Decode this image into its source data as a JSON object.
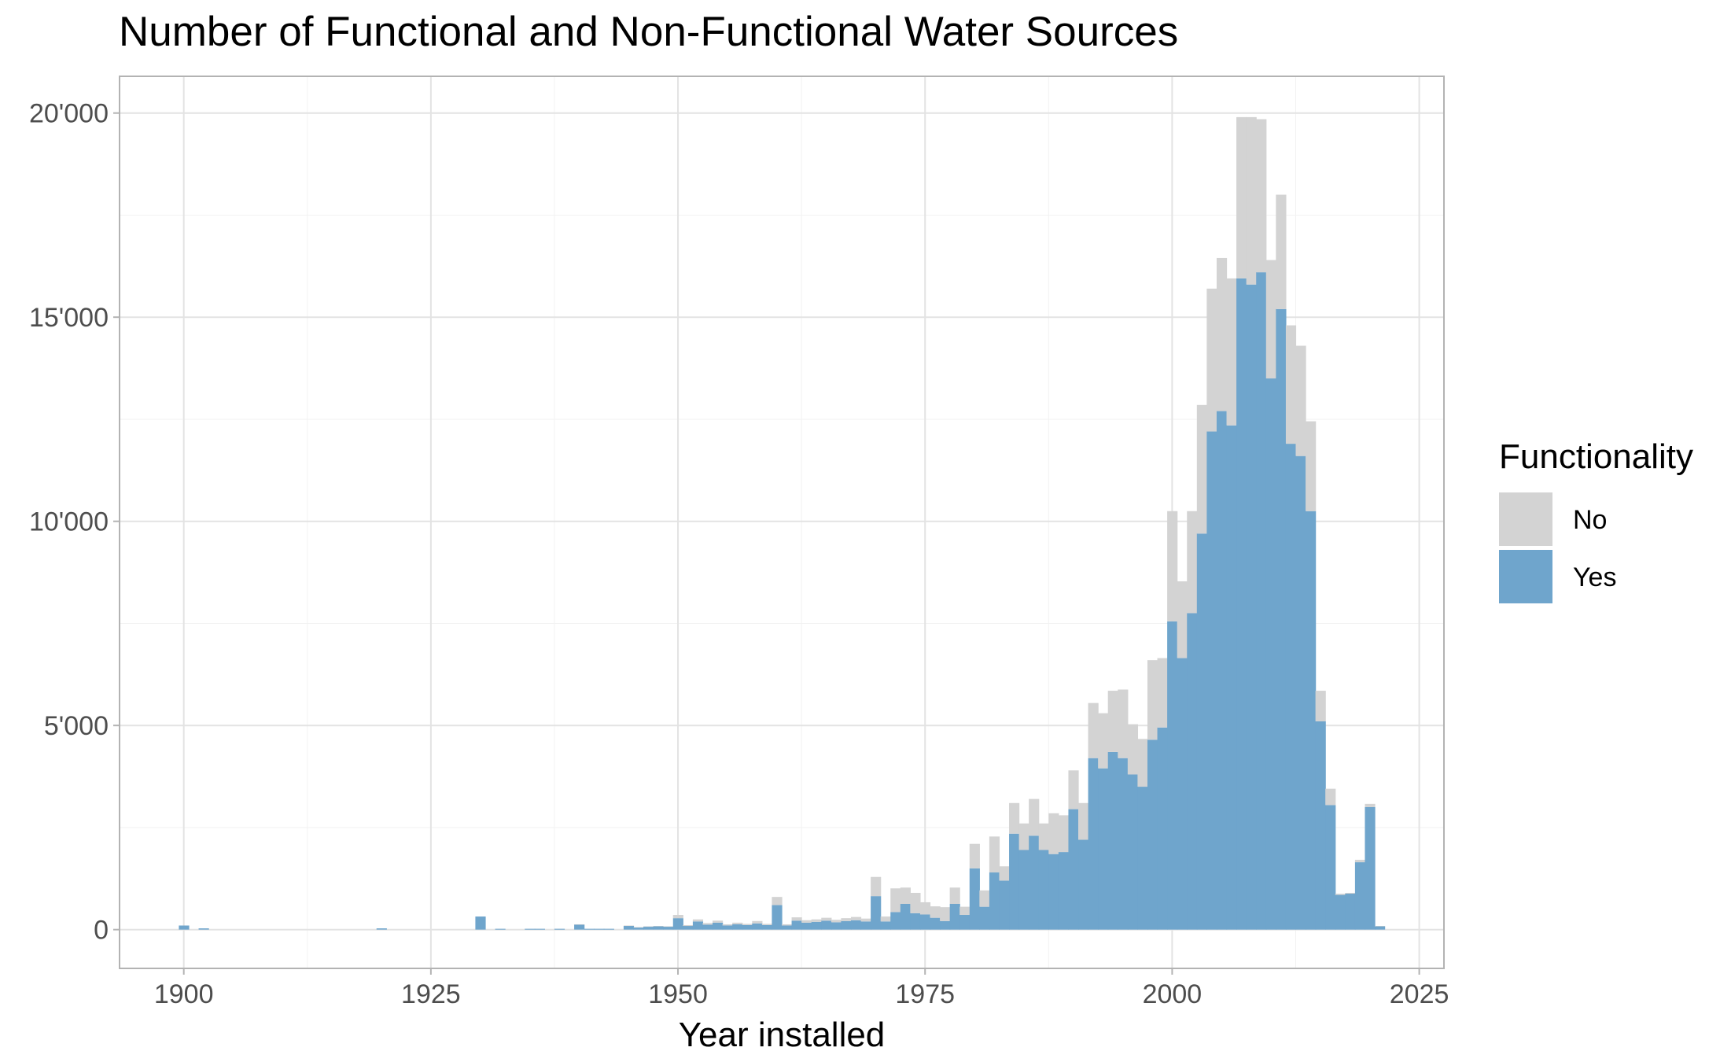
{
  "chart_data": {
    "type": "bar",
    "stacked": true,
    "title": "Number of Functional and Non-Functional Water Sources",
    "xlabel": "Year installed",
    "ylabel": "",
    "xlim": [
      1893.5,
      2027.5
    ],
    "ylim": [
      -950,
      20900
    ],
    "x_ticks": [
      1900,
      1925,
      1950,
      1975,
      2000,
      2025
    ],
    "x_tick_labels": [
      "1900",
      "1925",
      "1950",
      "1975",
      "2000",
      "2025"
    ],
    "y_ticks": [
      0,
      5000,
      10000,
      15000,
      20000
    ],
    "y_tick_labels": [
      "0",
      "5'000",
      "10'000",
      "15'000",
      "20'000"
    ],
    "grid": true,
    "legend_title": "Functionality",
    "legend_position": "right",
    "bin_width": 1,
    "series": [
      {
        "name": "Yes",
        "color": "#6fa5cc",
        "points": [
          [
            1900,
            100
          ],
          [
            1902,
            30
          ],
          [
            1920,
            30
          ],
          [
            1930,
            320
          ],
          [
            1932,
            20
          ],
          [
            1935,
            20
          ],
          [
            1936,
            20
          ],
          [
            1938,
            20
          ],
          [
            1940,
            120
          ],
          [
            1941,
            20
          ],
          [
            1942,
            20
          ],
          [
            1943,
            20
          ],
          [
            1945,
            90
          ],
          [
            1946,
            50
          ],
          [
            1947,
            70
          ],
          [
            1948,
            80
          ],
          [
            1949,
            70
          ],
          [
            1950,
            280
          ],
          [
            1951,
            90
          ],
          [
            1952,
            200
          ],
          [
            1953,
            120
          ],
          [
            1954,
            170
          ],
          [
            1955,
            100
          ],
          [
            1956,
            130
          ],
          [
            1957,
            110
          ],
          [
            1958,
            150
          ],
          [
            1959,
            110
          ],
          [
            1960,
            600
          ],
          [
            1961,
            100
          ],
          [
            1962,
            220
          ],
          [
            1963,
            170
          ],
          [
            1964,
            190
          ],
          [
            1965,
            220
          ],
          [
            1966,
            180
          ],
          [
            1967,
            210
          ],
          [
            1968,
            230
          ],
          [
            1969,
            200
          ],
          [
            1970,
            820
          ],
          [
            1971,
            200
          ],
          [
            1972,
            430
          ],
          [
            1973,
            630
          ],
          [
            1974,
            400
          ],
          [
            1975,
            370
          ],
          [
            1976,
            290
          ],
          [
            1977,
            210
          ],
          [
            1978,
            630
          ],
          [
            1979,
            360
          ],
          [
            1980,
            1500
          ],
          [
            1981,
            560
          ],
          [
            1982,
            1400
          ],
          [
            1983,
            1200
          ],
          [
            1984,
            2350
          ],
          [
            1985,
            1950
          ],
          [
            1986,
            2300
          ],
          [
            1987,
            1950
          ],
          [
            1988,
            1850
          ],
          [
            1989,
            1900
          ],
          [
            1990,
            2950
          ],
          [
            1991,
            2200
          ],
          [
            1992,
            4200
          ],
          [
            1993,
            3950
          ],
          [
            1994,
            4350
          ],
          [
            1995,
            4200
          ],
          [
            1996,
            3800
          ],
          [
            1997,
            3500
          ],
          [
            1998,
            4650
          ],
          [
            1999,
            4950
          ],
          [
            2000,
            7550
          ],
          [
            2001,
            6650
          ],
          [
            2002,
            7750
          ],
          [
            2003,
            9700
          ],
          [
            2004,
            12200
          ],
          [
            2005,
            12700
          ],
          [
            2006,
            12350
          ],
          [
            2007,
            15950
          ],
          [
            2008,
            15800
          ],
          [
            2009,
            16100
          ],
          [
            2010,
            13500
          ],
          [
            2011,
            15200
          ],
          [
            2012,
            11900
          ],
          [
            2013,
            11600
          ],
          [
            2014,
            10250
          ],
          [
            2015,
            5100
          ],
          [
            2016,
            3050
          ],
          [
            2017,
            850
          ],
          [
            2018,
            880
          ],
          [
            2019,
            1650
          ],
          [
            2020,
            3000
          ],
          [
            2021,
            80
          ]
        ]
      },
      {
        "name": "No",
        "color": "#d3d3d3",
        "points": [
          [
            1900,
            0
          ],
          [
            1902,
            0
          ],
          [
            1920,
            0
          ],
          [
            1930,
            0
          ],
          [
            1932,
            0
          ],
          [
            1935,
            0
          ],
          [
            1936,
            0
          ],
          [
            1938,
            0
          ],
          [
            1940,
            10
          ],
          [
            1941,
            0
          ],
          [
            1942,
            0
          ],
          [
            1943,
            0
          ],
          [
            1945,
            10
          ],
          [
            1946,
            10
          ],
          [
            1947,
            10
          ],
          [
            1948,
            10
          ],
          [
            1949,
            10
          ],
          [
            1950,
            80
          ],
          [
            1951,
            20
          ],
          [
            1952,
            50
          ],
          [
            1953,
            40
          ],
          [
            1954,
            50
          ],
          [
            1955,
            30
          ],
          [
            1956,
            40
          ],
          [
            1957,
            30
          ],
          [
            1958,
            60
          ],
          [
            1959,
            30
          ],
          [
            1960,
            200
          ],
          [
            1961,
            30
          ],
          [
            1962,
            80
          ],
          [
            1963,
            60
          ],
          [
            1964,
            60
          ],
          [
            1965,
            70
          ],
          [
            1966,
            60
          ],
          [
            1967,
            70
          ],
          [
            1968,
            80
          ],
          [
            1969,
            70
          ],
          [
            1970,
            470
          ],
          [
            1971,
            120
          ],
          [
            1972,
            580
          ],
          [
            1973,
            400
          ],
          [
            1974,
            500
          ],
          [
            1975,
            300
          ],
          [
            1976,
            280
          ],
          [
            1977,
            340
          ],
          [
            1978,
            400
          ],
          [
            1979,
            200
          ],
          [
            1980,
            600
          ],
          [
            1981,
            400
          ],
          [
            1982,
            880
          ],
          [
            1983,
            350
          ],
          [
            1984,
            750
          ],
          [
            1985,
            650
          ],
          [
            1986,
            900
          ],
          [
            1987,
            650
          ],
          [
            1988,
            1000
          ],
          [
            1989,
            900
          ],
          [
            1990,
            950
          ],
          [
            1991,
            900
          ],
          [
            1992,
            1350
          ],
          [
            1993,
            1350
          ],
          [
            1994,
            1500
          ],
          [
            1995,
            1680
          ],
          [
            1996,
            1230
          ],
          [
            1997,
            1170
          ],
          [
            1998,
            1950
          ],
          [
            1999,
            1700
          ],
          [
            2000,
            2700
          ],
          [
            2001,
            1880
          ],
          [
            2002,
            2500
          ],
          [
            2003,
            3150
          ],
          [
            2004,
            3500
          ],
          [
            2005,
            3750
          ],
          [
            2006,
            3600
          ],
          [
            2007,
            3950
          ],
          [
            2008,
            4100
          ],
          [
            2009,
            3750
          ],
          [
            2010,
            2900
          ],
          [
            2011,
            2800
          ],
          [
            2012,
            2900
          ],
          [
            2013,
            2700
          ],
          [
            2014,
            2200
          ],
          [
            2015,
            750
          ],
          [
            2016,
            400
          ],
          [
            2017,
            30
          ],
          [
            2018,
            20
          ],
          [
            2019,
            60
          ],
          [
            2020,
            80
          ],
          [
            2021,
            10
          ]
        ]
      }
    ]
  }
}
